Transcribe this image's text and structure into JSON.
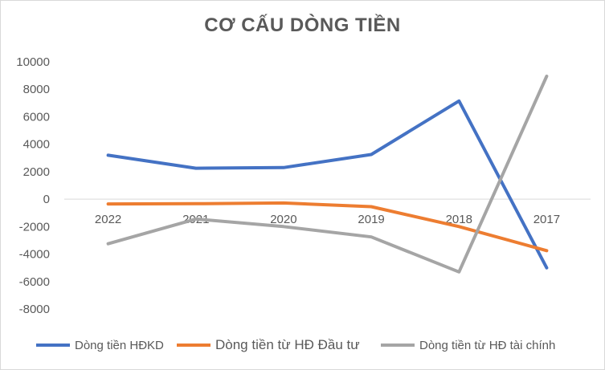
{
  "chart_data": {
    "type": "line",
    "title": "CƠ CẤU DÒNG TIỀN",
    "categories": [
      "2022",
      "2021",
      "2020",
      "2019",
      "2018",
      "2017"
    ],
    "ylim": [
      -8000,
      10000
    ],
    "yticks": [
      10000,
      8000,
      6000,
      4000,
      2000,
      0,
      -2000,
      -4000,
      -6000,
      -8000
    ],
    "grid": false,
    "legend_position": "bottom",
    "series": [
      {
        "name": "Dòng tiền HĐKD",
        "color": "#4472C4",
        "values": [
          3200,
          2250,
          2300,
          3250,
          7150,
          -5000
        ]
      },
      {
        "name": "Dòng tiền từ HĐ Đầu tư",
        "color": "#ED7D31",
        "values": [
          -350,
          -330,
          -280,
          -550,
          -2000,
          -3750
        ]
      },
      {
        "name": "Dòng tiền từ HĐ tài chính",
        "color": "#A5A5A5",
        "values": [
          -3250,
          -1450,
          -2000,
          -2750,
          -5300,
          8950
        ]
      }
    ]
  }
}
